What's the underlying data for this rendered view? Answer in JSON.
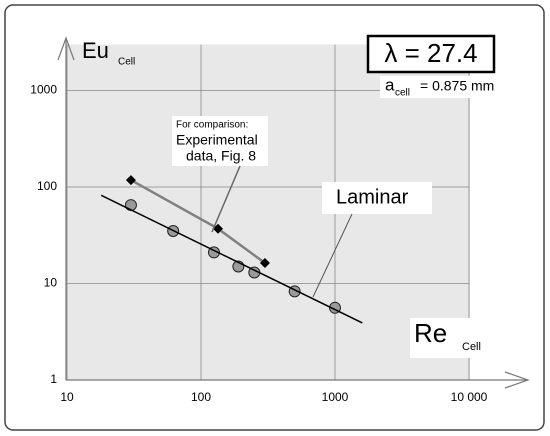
{
  "chart_data": {
    "type": "scatter",
    "y_label": {
      "main": "Eu",
      "sub": "Cell"
    },
    "x_label": {
      "main": "Re",
      "sub": "Cell"
    },
    "annotations": {
      "lambda": "λ = 27.4",
      "a_main": "a",
      "a_sub": "cell",
      "a_value": "= 0.875 mm",
      "comparison": [
        "For comparison:",
        "Experimental",
        "data, Fig. 8"
      ],
      "laminar": "Laminar"
    },
    "xlog": true,
    "ylog": true,
    "grid": true,
    "xlim": [
      10,
      10000
    ],
    "ylim": [
      1,
      3000
    ],
    "xticks": [
      10,
      100,
      1000,
      {
        "value": 10000,
        "label": "10 000"
      }
    ],
    "yticks": [
      1,
      10,
      100,
      1000
    ],
    "series": [
      {
        "style": "markers",
        "marker": "circle",
        "color": "#9a9a9a",
        "x": [
          30,
          62,
          125,
          190,
          250,
          500,
          1000
        ],
        "values": [
          65,
          35,
          21,
          15,
          13,
          8.3,
          5.6
        ]
      },
      {
        "style": "line",
        "color": "#000000",
        "x": [
          18,
          1600
        ],
        "values": [
          82,
          3.9
        ]
      },
      {
        "style": "line-markers",
        "marker": "diamond",
        "color": "#808080",
        "x": [
          30,
          134,
          300
        ],
        "values": [
          118,
          37,
          16.3
        ]
      }
    ]
  }
}
